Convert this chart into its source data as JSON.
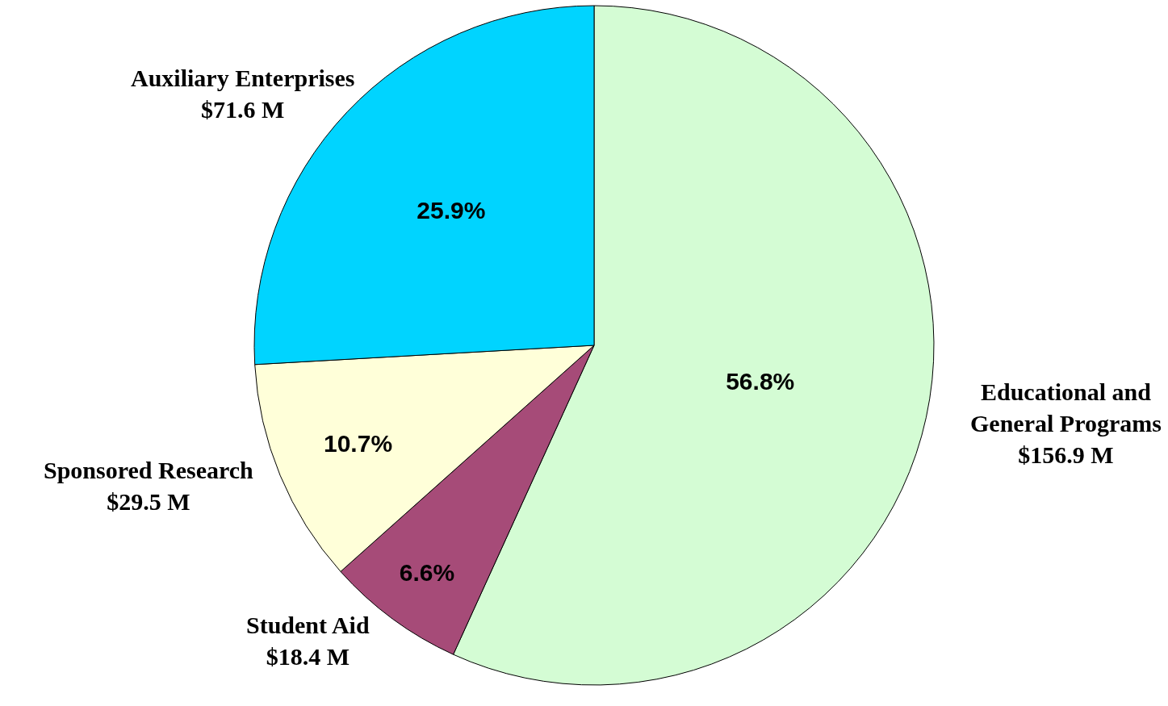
{
  "chart_data": {
    "type": "pie",
    "categories": [
      "Educational and General Programs",
      "Student Aid",
      "Sponsored Research",
      "Auxiliary Enterprises"
    ],
    "values": [
      56.8,
      6.6,
      10.7,
      25.9
    ],
    "colors": [
      "#d4fcd4",
      "#a64b78",
      "#ffffd9",
      "#00d4ff"
    ],
    "value_labels": [
      "56.8%",
      "6.6%",
      "10.7%",
      "25.9%"
    ],
    "annotations": [
      "$156.9 M",
      "$18.4 M",
      "$29.5 M",
      "$71.6 M"
    ],
    "legend": false
  }
}
